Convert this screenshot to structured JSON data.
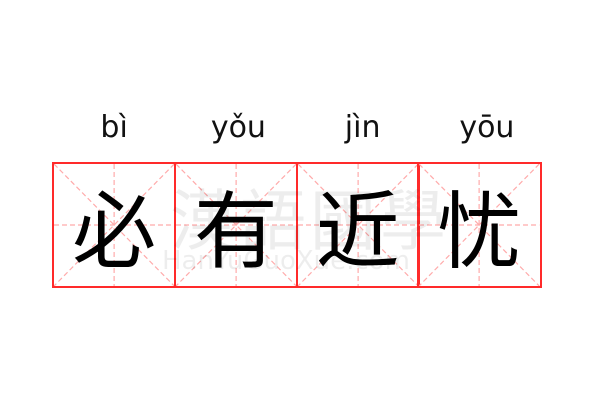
{
  "idiom": [
    {
      "pinyin": "bì",
      "char": "必"
    },
    {
      "pinyin": "yǒu",
      "char": "有"
    },
    {
      "pinyin": "jìn",
      "char": "近"
    },
    {
      "pinyin": "yōu",
      "char": "忧"
    }
  ],
  "watermark": {
    "chinese": "漢語國學",
    "latin": "HanYuGuoXue.com"
  },
  "colors": {
    "grid_border": "#ff2a2a",
    "guide_lines": "#ffaaaa"
  }
}
